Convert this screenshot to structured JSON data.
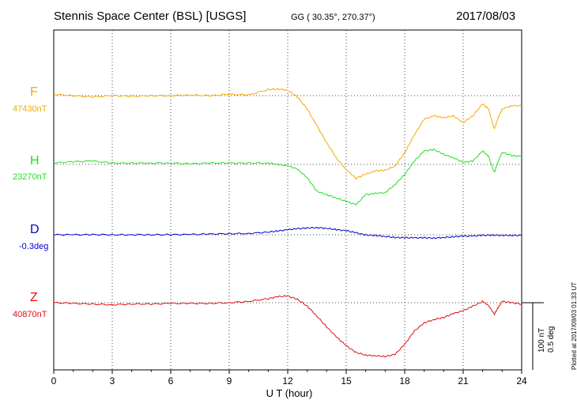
{
  "header": {
    "station": "Stennis Space Center (BSL)  [USGS]",
    "coords": "GG ( 30.35°, 270.37°)",
    "date": "2017/08/03"
  },
  "plotted_note": "Plotted at 2017/09/03 01:33 UT",
  "scale": {
    "nt": "100 nT",
    "deg": "0.5 deg"
  },
  "chart_data": {
    "type": "line",
    "xlabel": "U T (hour)",
    "xlim": [
      0,
      24
    ],
    "xticks": [
      "0",
      "3",
      "6",
      "9",
      "12",
      "15",
      "18",
      "21",
      "24"
    ],
    "grid": true,
    "series": [
      {
        "name": "F",
        "baseline_label": "47430nT",
        "color": "#f5a800",
        "x": [
          0,
          1,
          2,
          3,
          4,
          5,
          6,
          7,
          8,
          9,
          10,
          11,
          11.5,
          12,
          12.5,
          13,
          13.5,
          14,
          14.5,
          15,
          15.5,
          16,
          16.5,
          17,
          17.5,
          18,
          18.5,
          19,
          19.5,
          20,
          20.5,
          21,
          21.5,
          22,
          22.3,
          22.6,
          22.8,
          23,
          23.5,
          24
        ],
        "y": [
          47432,
          47430,
          47428,
          47430,
          47429,
          47430,
          47430,
          47431,
          47430,
          47432,
          47431,
          47439,
          47440,
          47438,
          47428,
          47410,
          47385,
          47360,
          47337,
          47320,
          47307,
          47313,
          47318,
          47319,
          47325,
          47345,
          47372,
          47395,
          47400,
          47397,
          47400,
          47390,
          47400,
          47418,
          47410,
          47380,
          47398,
          47410,
          47415,
          47415
        ]
      },
      {
        "name": "H",
        "baseline_label": "23270nT",
        "color": "#1ee01e",
        "x": [
          0,
          1,
          2,
          3,
          4,
          5,
          6,
          7,
          8,
          9,
          10,
          11,
          11.5,
          12,
          12.5,
          13,
          13.5,
          14,
          14.5,
          15,
          15.5,
          16,
          16.5,
          17,
          17.5,
          18,
          18.5,
          19,
          19.5,
          20,
          20.5,
          21,
          21.5,
          22,
          22.3,
          22.6,
          22.8,
          23,
          23.5,
          24
        ],
        "y": [
          23272,
          23274,
          23275,
          23272,
          23272,
          23272,
          23272,
          23271,
          23272,
          23272,
          23272,
          23272,
          23270,
          23268,
          23263,
          23250,
          23230,
          23225,
          23220,
          23215,
          23210,
          23225,
          23227,
          23228,
          23240,
          23255,
          23275,
          23290,
          23292,
          23285,
          23280,
          23273,
          23275,
          23290,
          23282,
          23258,
          23275,
          23288,
          23283,
          23282
        ]
      },
      {
        "name": "D",
        "baseline_label": "-0.3deg",
        "color": "#0000cc",
        "x": [
          0,
          1,
          2,
          3,
          4,
          5,
          6,
          7,
          8,
          9,
          10,
          11,
          11.5,
          12,
          12.5,
          13,
          13.5,
          14,
          14.5,
          15,
          15.5,
          16,
          16.5,
          17,
          17.5,
          18,
          18.5,
          19,
          19.5,
          20,
          20.5,
          21,
          21.5,
          22,
          22.5,
          23,
          23.5,
          24
        ],
        "y": [
          -0.3,
          -0.3,
          -0.299,
          -0.3,
          -0.3,
          -0.3,
          -0.299,
          -0.298,
          -0.295,
          -0.292,
          -0.29,
          -0.28,
          -0.272,
          -0.263,
          -0.255,
          -0.25,
          -0.247,
          -0.252,
          -0.262,
          -0.27,
          -0.285,
          -0.302,
          -0.305,
          -0.312,
          -0.32,
          -0.322,
          -0.323,
          -0.322,
          -0.325,
          -0.32,
          -0.315,
          -0.31,
          -0.31,
          -0.304,
          -0.303,
          -0.304,
          -0.305,
          -0.305
        ]
      },
      {
        "name": "Z",
        "baseline_label": "40870nT",
        "color": "#e01010",
        "x": [
          0,
          1,
          2,
          3,
          4,
          5,
          6,
          7,
          8,
          9,
          10,
          11,
          11.5,
          12,
          12.5,
          13,
          13.5,
          14,
          14.5,
          15,
          15.5,
          16,
          16.5,
          17,
          17.5,
          18,
          18.5,
          19,
          19.5,
          20,
          20.5,
          21,
          21.5,
          22,
          22.3,
          22.6,
          22.8,
          23,
          23.5,
          24
        ],
        "y": [
          40870,
          40869,
          40868,
          40867,
          40868,
          40868,
          40869,
          40869,
          40869,
          40870,
          40872,
          40876,
          40879,
          40880,
          40875,
          40865,
          40850,
          40834,
          40819,
          40806,
          40796,
          40792,
          40791,
          40790,
          40793,
          40808,
          40828,
          40840,
          40845,
          40848,
          40854,
          40858,
          40865,
          40872,
          40866,
          40853,
          40863,
          40872,
          40870,
          40868
        ]
      }
    ]
  }
}
